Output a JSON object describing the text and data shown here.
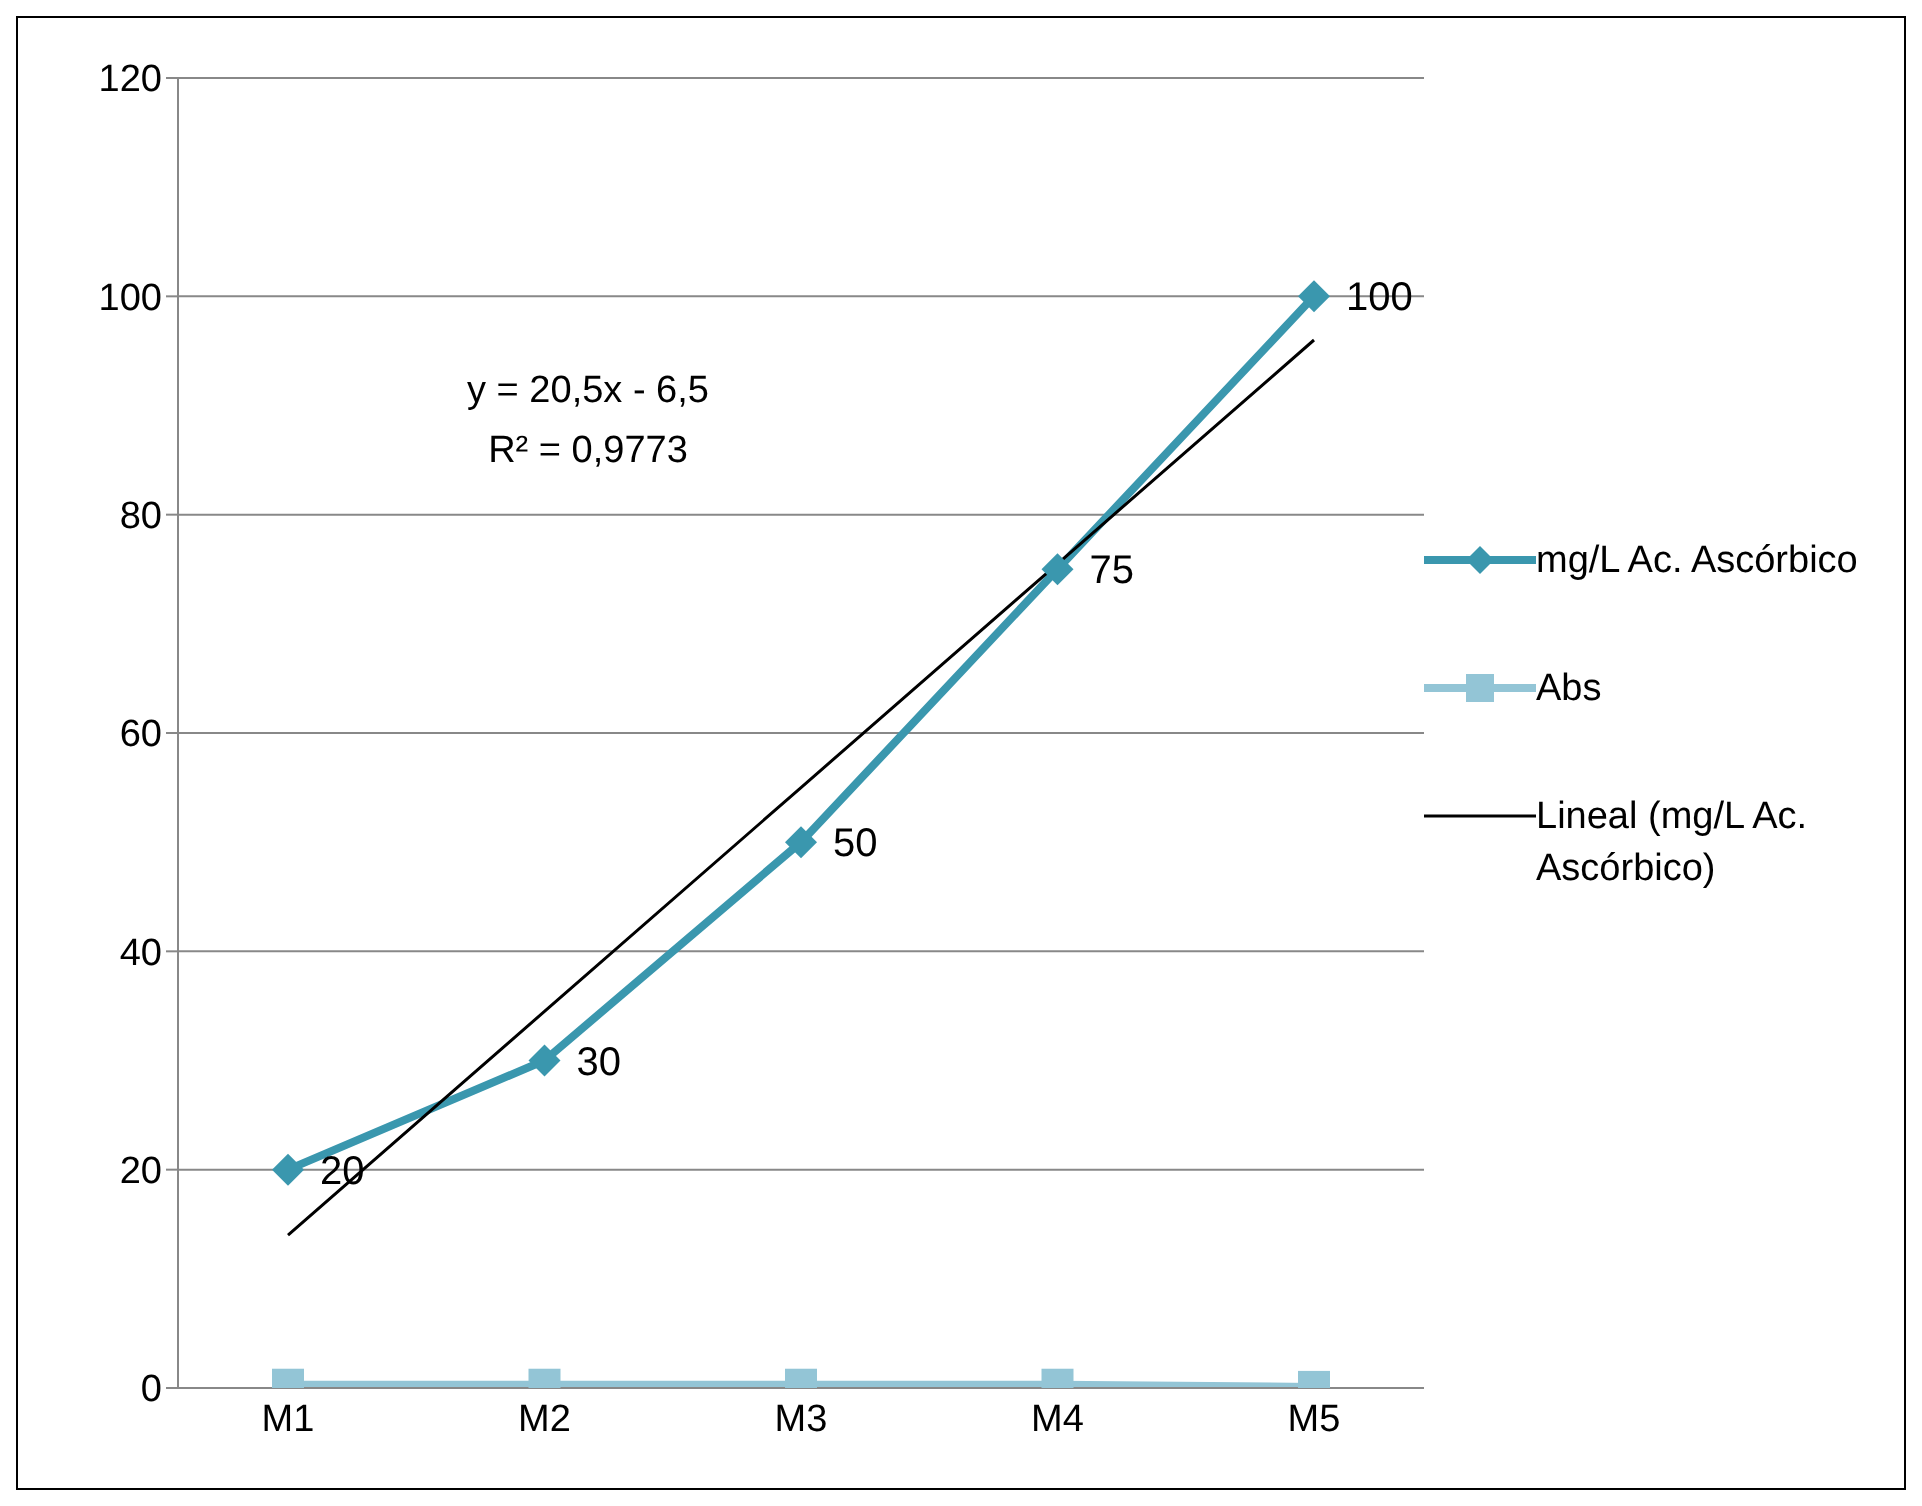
{
  "chart_data": {
    "type": "line",
    "categories": [
      "M1",
      "M2",
      "M3",
      "M4",
      "M5"
    ],
    "series": [
      {
        "name": "mg/L Ac. Ascórbico",
        "color": "#3a97ae",
        "values": [
          20,
          30,
          50,
          75,
          100
        ],
        "marker": "diamond",
        "value_labels": [
          "20",
          "30",
          "50",
          "75",
          "100"
        ]
      },
      {
        "name": "Abs",
        "color": "#93c5d6",
        "values": [
          0.3,
          0.3,
          0.3,
          0.3,
          0.1
        ],
        "marker": "square"
      },
      {
        "name": "Lineal (mg/L Ac. Ascórbico)",
        "color": "#000000",
        "values": [
          14,
          34.5,
          55,
          75.5,
          96
        ],
        "marker": "none"
      }
    ],
    "annotations": [
      "y = 20,5x - 6,5",
      "R² = 0,9773"
    ],
    "ylim": [
      0,
      120
    ],
    "yticks": [
      0,
      20,
      40,
      60,
      80,
      100,
      120
    ],
    "grid": "y",
    "legend": "right"
  }
}
